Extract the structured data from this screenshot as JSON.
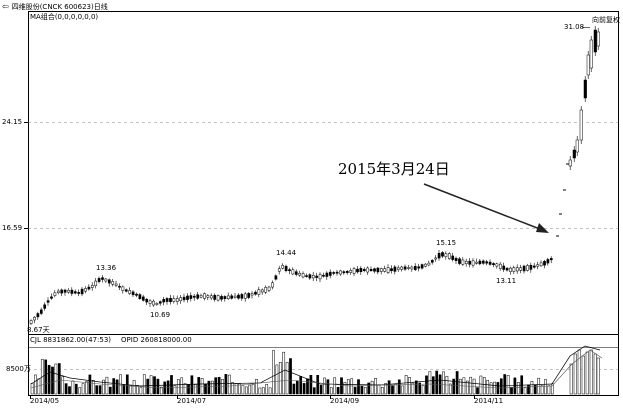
{
  "header": {
    "back_icon": "back-arrow-icon",
    "title": "四维股份(CNCK 600623)日线",
    "ma_label": "MA组合(0,0,0,0,0,0)",
    "restore_button": "向前复权"
  },
  "price_axis": {
    "ticks": [
      {
        "label": "24.15",
        "value": 24.15
      },
      {
        "label": "16.59",
        "value": 16.59
      }
    ]
  },
  "price_labels": {
    "high_2014_05": "13.36",
    "low_2014_06": "10.69",
    "high_2014_08": "14.44",
    "high_2014_10": "15.15",
    "low_2014_11": "13.11",
    "high_final": "31.08",
    "start_low": "8.67天"
  },
  "annotation": {
    "text": "2015年3月24日"
  },
  "volume": {
    "cjl_label": "CJL  8831862.00(47:53)",
    "opid_label": "OPID   260818000.00",
    "axis_label": "8500万"
  },
  "x_axis": {
    "labels": [
      "2014/05",
      "2014/07",
      "2014/09",
      "2014/11"
    ]
  },
  "colors": {
    "up": "#000000",
    "down": "#000000",
    "up_fill": "#ffffff",
    "down_fill": "#000000",
    "grid": "#888888",
    "arrow": "#222222"
  }
}
